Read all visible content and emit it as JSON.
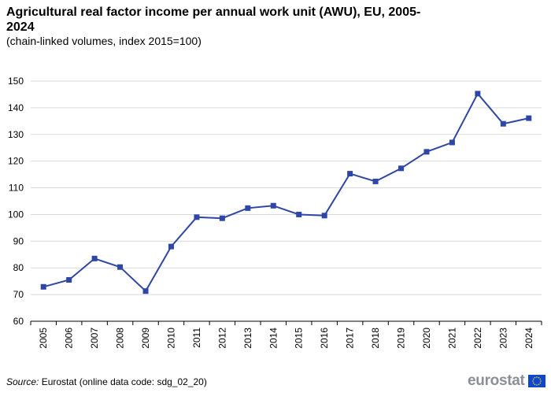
{
  "title": "Agricultural real factor income per annual work unit (AWU), EU, 2005-2024",
  "subtitle": "(chain-linked volumes, index 2015=100)",
  "source": {
    "label": "Source:",
    "text": "Eurostat (online data code: sdg_02_20)"
  },
  "logo": {
    "text": "eurostat",
    "icon": "eu-flag-icon"
  },
  "colors": {
    "line": "#2e46a5",
    "grid": "#d9d9d9",
    "axis": "#000000",
    "logo_blue": "#0e47cb",
    "logo_star": "#ffd617"
  },
  "chart_data": {
    "type": "line",
    "x": [
      "2005",
      "2006",
      "2007",
      "2008",
      "2009",
      "2010",
      "2011",
      "2012",
      "2013",
      "2014",
      "2015",
      "2016",
      "2017",
      "2018",
      "2019",
      "2020",
      "2021",
      "2022",
      "2023",
      "2024"
    ],
    "series": [
      {
        "values": [
          72.9,
          75.5,
          83.5,
          80.3,
          71.3,
          88.0,
          99.0,
          98.6,
          102.4,
          103.3,
          100.0,
          99.6,
          115.3,
          112.4,
          117.3,
          123.5,
          127.0,
          145.3,
          134.0,
          136.1
        ]
      }
    ],
    "ylim": [
      60,
      150
    ],
    "yticks": [
      60,
      70,
      80,
      90,
      100,
      110,
      120,
      130,
      140,
      150
    ],
    "grid": true,
    "legend": "none"
  }
}
